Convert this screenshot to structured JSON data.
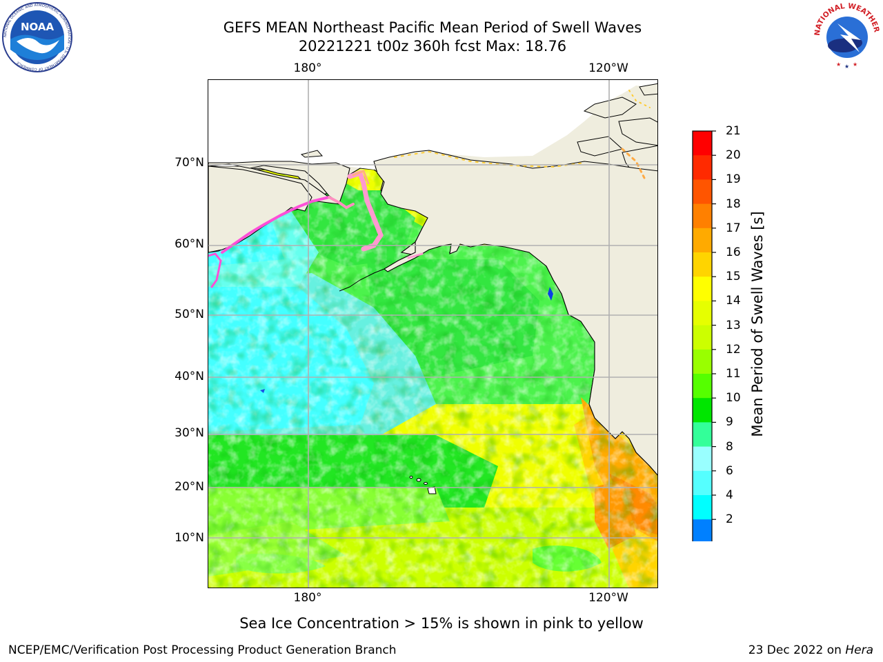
{
  "title": {
    "line1": "GEFS MEAN Northeast Pacific Mean Period of Swell Waves",
    "line2": "20221221 t00z 360h fcst   Max: 18.76"
  },
  "logos": {
    "left": {
      "name": "noaa-logo",
      "text": "NOAA",
      "ring_text": "NATIONAL OCEANIC AND ATMOSPHERIC ADMINISTRATION · U.S. DEPARTMENT OF COMMERCE"
    },
    "right": {
      "name": "nws-logo",
      "ring_text": "NATIONAL WEATHER SERVICE"
    }
  },
  "map": {
    "lon_labels": [
      "180°",
      "120°W"
    ],
    "lat_labels": [
      "70°N",
      "60°N",
      "50°N",
      "40°N",
      "30°N",
      "20°N",
      "10°N"
    ],
    "colors": {
      "land": "#efedde",
      "coast": "#000000",
      "grid": "#b0b0b0",
      "sea_ice": "#ff4fd8"
    }
  },
  "colorbar": {
    "label": "Mean Period of Swell Waves [s]",
    "ticks": [
      "21",
      "20",
      "19",
      "18",
      "17",
      "16",
      "15",
      "14",
      "13",
      "12",
      "11",
      "10",
      "9",
      "8",
      "6",
      "4",
      "2"
    ],
    "colors_top_to_bottom": [
      "#ff0000",
      "#ff2a00",
      "#ff5500",
      "#ff8000",
      "#ffaa00",
      "#ffd400",
      "#ffff00",
      "#e6ff00",
      "#ccff00",
      "#99ff00",
      "#55ff00",
      "#00e600",
      "#33ff99",
      "#99ffff",
      "#55ffff",
      "#00ffff",
      "#0080ff"
    ],
    "extend_color": "#0000ee"
  },
  "footnote": "Sea Ice Concentration > 15% is shown in pink to yellow",
  "credit": "NCEP/EMC/Verification Post Processing Product Generation Branch",
  "date": {
    "text": "23 Dec 2022 on ",
    "host": "Hera"
  }
}
